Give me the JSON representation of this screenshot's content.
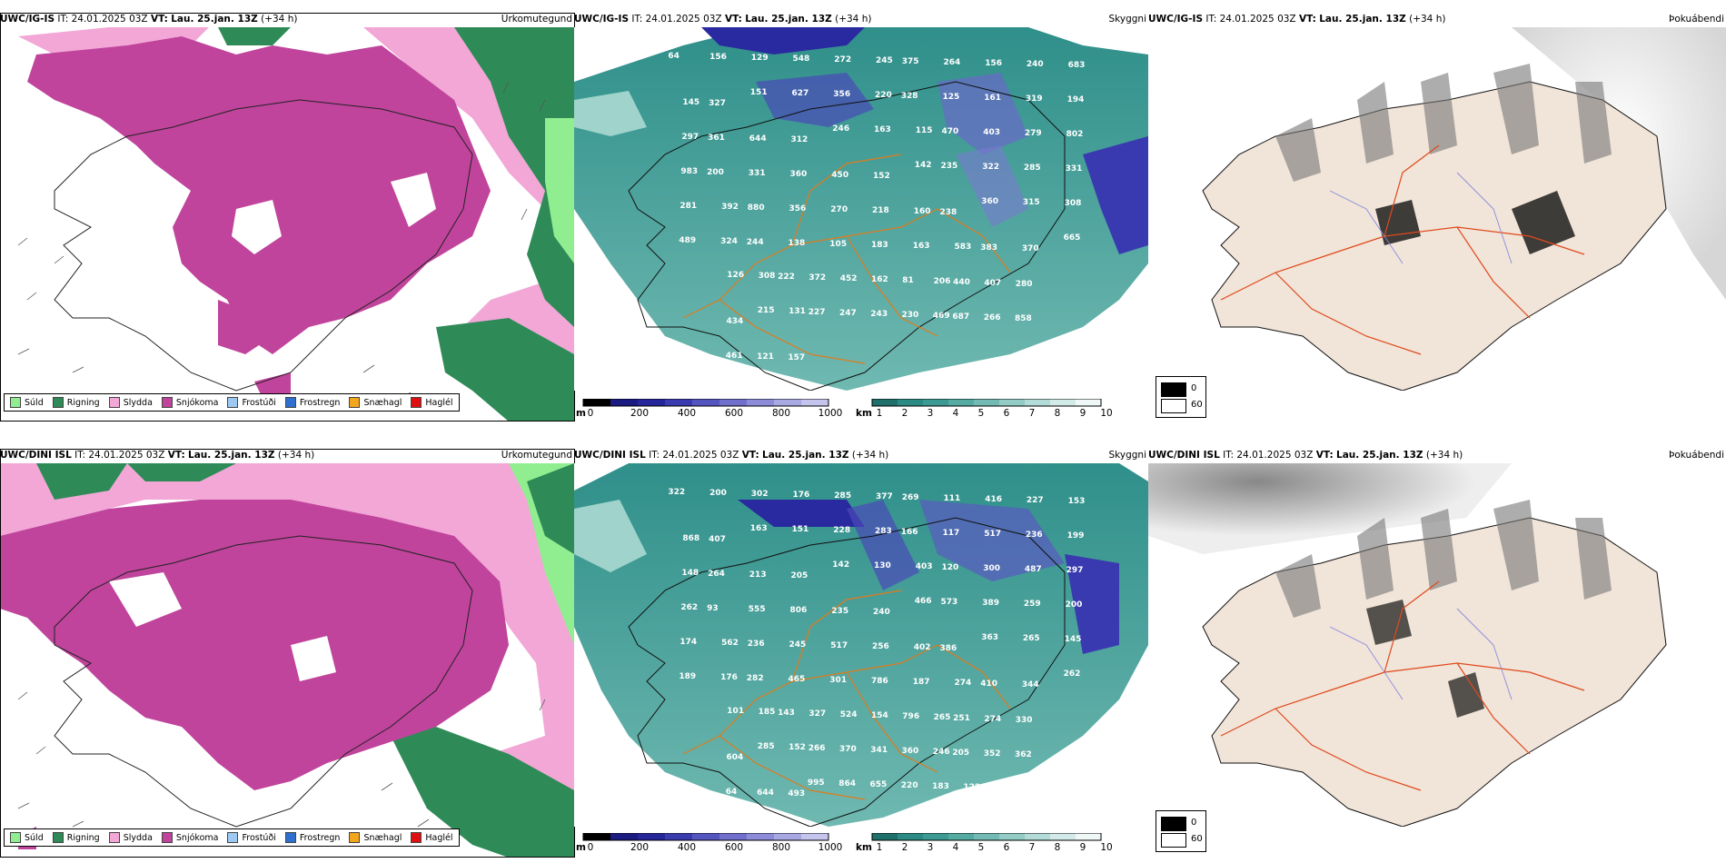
{
  "rows": [
    {
      "model": "UWC/IG-IS",
      "it_label": "IT:",
      "it_value": "24.01.2025 03Z",
      "vt_label": "VT:",
      "vt_value": "Lau. 25.jan. 13Z",
      "lead": "(+34 h)",
      "panels": {
        "precip": "Úrkomutegund",
        "cloud": "Skyggni",
        "fog": "Þokuábendi"
      }
    },
    {
      "model": "UWC/DINI ISL",
      "it_label": "IT:",
      "it_value": "24.01.2025 03Z",
      "vt_label": "VT:",
      "vt_value": "Lau. 25.jan. 13Z",
      "lead": "(+34 h)",
      "panels": {
        "precip": "Úrkomutegund",
        "cloud": "Skyggni",
        "fog": "Þokuábendi"
      }
    }
  ],
  "precip_legend": [
    {
      "label": "Súld",
      "color": "#90ee90"
    },
    {
      "label": "Rigning",
      "color": "#2e8b57"
    },
    {
      "label": "Slydda",
      "color": "#f2a7d6"
    },
    {
      "label": "Snjókoma",
      "color": "#c0449c"
    },
    {
      "label": "Frostúði",
      "color": "#9ec9f2"
    },
    {
      "label": "Frostregn",
      "color": "#2f6fd0"
    },
    {
      "label": "Snæhagl",
      "color": "#f3a51c"
    },
    {
      "label": "Haglél",
      "color": "#e01010"
    }
  ],
  "ceiling_bar": {
    "unit": "m",
    "ticks": [
      "0",
      "200",
      "400",
      "600",
      "800",
      "1000"
    ]
  },
  "visibility_bar": {
    "unit": "km",
    "ticks": [
      "1",
      "2",
      "3",
      "4",
      "5",
      "6",
      "7",
      "8",
      "9",
      "10"
    ]
  },
  "fog_legend": {
    "dark": "0",
    "light": "60"
  },
  "labels_row1": [
    "64",
    "156",
    "129",
    "548",
    "272",
    "245",
    "375",
    "264",
    "156",
    "240",
    "683",
    "145",
    "327",
    "151",
    "627",
    "356",
    "220",
    "328",
    "125",
    "161",
    "319",
    "194",
    "297",
    "361",
    "644",
    "312",
    "246",
    "163",
    "115",
    "470",
    "403",
    "279",
    "802",
    "983",
    "200",
    "331",
    "360",
    "450",
    "152",
    "142",
    "235",
    "322",
    "285",
    "331",
    "281",
    "392",
    "880",
    "356",
    "270",
    "218",
    "160",
    "238",
    "360",
    "315",
    "308",
    "489",
    "324",
    "244",
    "138",
    "105",
    "183",
    "163",
    "583",
    "383",
    "370",
    "665",
    "126",
    "308",
    "222",
    "372",
    "452",
    "162",
    "81",
    "206",
    "440",
    "407",
    "280",
    "434",
    "215",
    "131",
    "227",
    "247",
    "243",
    "230",
    "469",
    "687",
    "266",
    "858",
    "461",
    "121",
    "157"
  ],
  "labels_row2": [
    "322",
    "200",
    "302",
    "176",
    "285",
    "377",
    "269",
    "111",
    "416",
    "227",
    "153",
    "868",
    "407",
    "163",
    "151",
    "228",
    "283",
    "166",
    "117",
    "517",
    "236",
    "199",
    "148",
    "264",
    "213",
    "205",
    "142",
    "130",
    "403",
    "120",
    "300",
    "487",
    "297",
    "262",
    "93",
    "555",
    "806",
    "235",
    "240",
    "466",
    "573",
    "389",
    "259",
    "200",
    "174",
    "562",
    "236",
    "245",
    "517",
    "256",
    "402",
    "386",
    "363",
    "265",
    "145",
    "189",
    "176",
    "282",
    "465",
    "301",
    "786",
    "187",
    "274",
    "410",
    "344",
    "262",
    "101",
    "185",
    "143",
    "327",
    "524",
    "154",
    "796",
    "265",
    "251",
    "274",
    "330",
    "604",
    "285",
    "152",
    "266",
    "370",
    "341",
    "360",
    "246",
    "205",
    "352",
    "362",
    "64",
    "644",
    "493",
    "995",
    "864",
    "655",
    "220",
    "183",
    "122",
    "117"
  ]
}
